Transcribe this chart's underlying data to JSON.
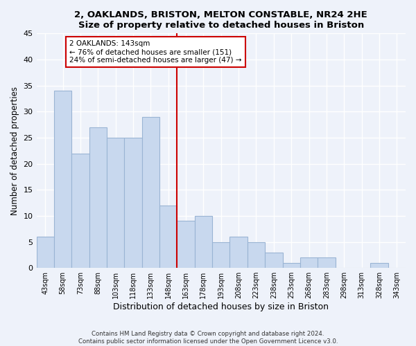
{
  "title_line1": "2, OAKLANDS, BRISTON, MELTON CONSTABLE, NR24 2HE",
  "title_line2": "Size of property relative to detached houses in Briston",
  "xlabel": "Distribution of detached houses by size in Briston",
  "ylabel": "Number of detached properties",
  "bar_labels": [
    "43sqm",
    "58sqm",
    "73sqm",
    "88sqm",
    "103sqm",
    "118sqm",
    "133sqm",
    "148sqm",
    "163sqm",
    "178sqm",
    "193sqm",
    "208sqm",
    "223sqm",
    "238sqm",
    "253sqm",
    "268sqm",
    "283sqm",
    "298sqm",
    "313sqm",
    "328sqm",
    "343sqm"
  ],
  "bar_values": [
    6,
    34,
    22,
    27,
    25,
    25,
    29,
    12,
    9,
    10,
    5,
    6,
    5,
    3,
    1,
    2,
    2,
    0,
    0,
    1,
    0
  ],
  "bar_color": "#c8d8ee",
  "bar_edge_color": "#9ab4d4",
  "reference_line_color": "#cc0000",
  "annotation_title": "2 OAKLANDS: 143sqm",
  "annotation_line1": "← 76% of detached houses are smaller (151)",
  "annotation_line2": "24% of semi-detached houses are larger (47) →",
  "annotation_box_color": "#ffffff",
  "annotation_box_edge_color": "#cc0000",
  "ylim": [
    0,
    45
  ],
  "yticks": [
    0,
    5,
    10,
    15,
    20,
    25,
    30,
    35,
    40,
    45
  ],
  "footer_line1": "Contains HM Land Registry data © Crown copyright and database right 2024.",
  "footer_line2": "Contains public sector information licensed under the Open Government Licence v3.0.",
  "background_color": "#eef2fa",
  "grid_color": "#ffffff"
}
